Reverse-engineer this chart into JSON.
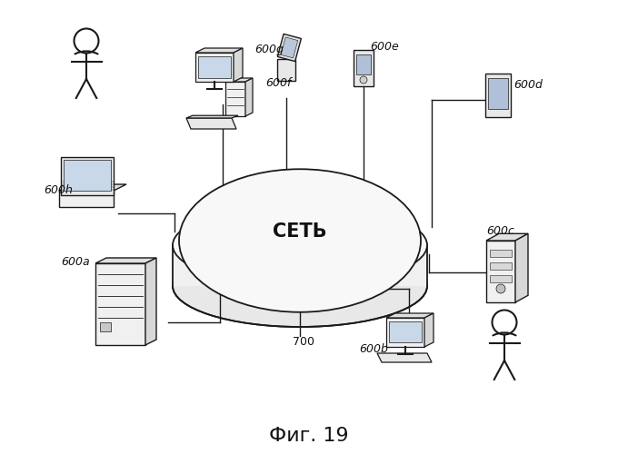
{
  "title": "Фиг. 19",
  "network_label": "СЕТЬ",
  "hub_label": "700",
  "background_color": "#ffffff",
  "line_color": "#1a1a1a",
  "text_color": "#111111",
  "fig_width": 6.8,
  "fig_height": 5.0,
  "dpi": 100
}
